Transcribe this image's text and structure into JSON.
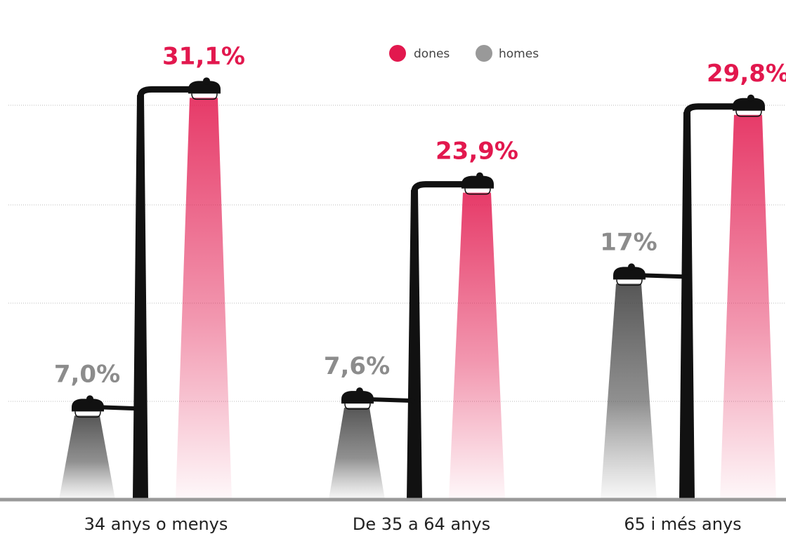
{
  "chart_data": {
    "type": "bar",
    "categories": [
      "34 anys o menys",
      "De 35 a 64 anys",
      "65 i més anys"
    ],
    "series": [
      {
        "name": "dones",
        "values": [
          31.1,
          23.9,
          29.8
        ],
        "labels": [
          "31,1%",
          "23,9%",
          "29,8%"
        ],
        "color": "#e2184e"
      },
      {
        "name": "homes",
        "values": [
          7.0,
          7.6,
          17
        ],
        "labels": [
          "7,0%",
          "7,6%",
          "17%"
        ],
        "color": "#8c8c8c"
      }
    ],
    "ylim": [
      0,
      32
    ],
    "grid": true,
    "legend_position": "top-center",
    "title": "",
    "xlabel": "",
    "ylabel": ""
  },
  "colors": {
    "dones": "#e2184e",
    "homes": "#999999",
    "lamp_post": "#111111",
    "baseline": "#999999",
    "grid": "#bbbbbb"
  },
  "icons": [
    "street-lamp-icon"
  ]
}
